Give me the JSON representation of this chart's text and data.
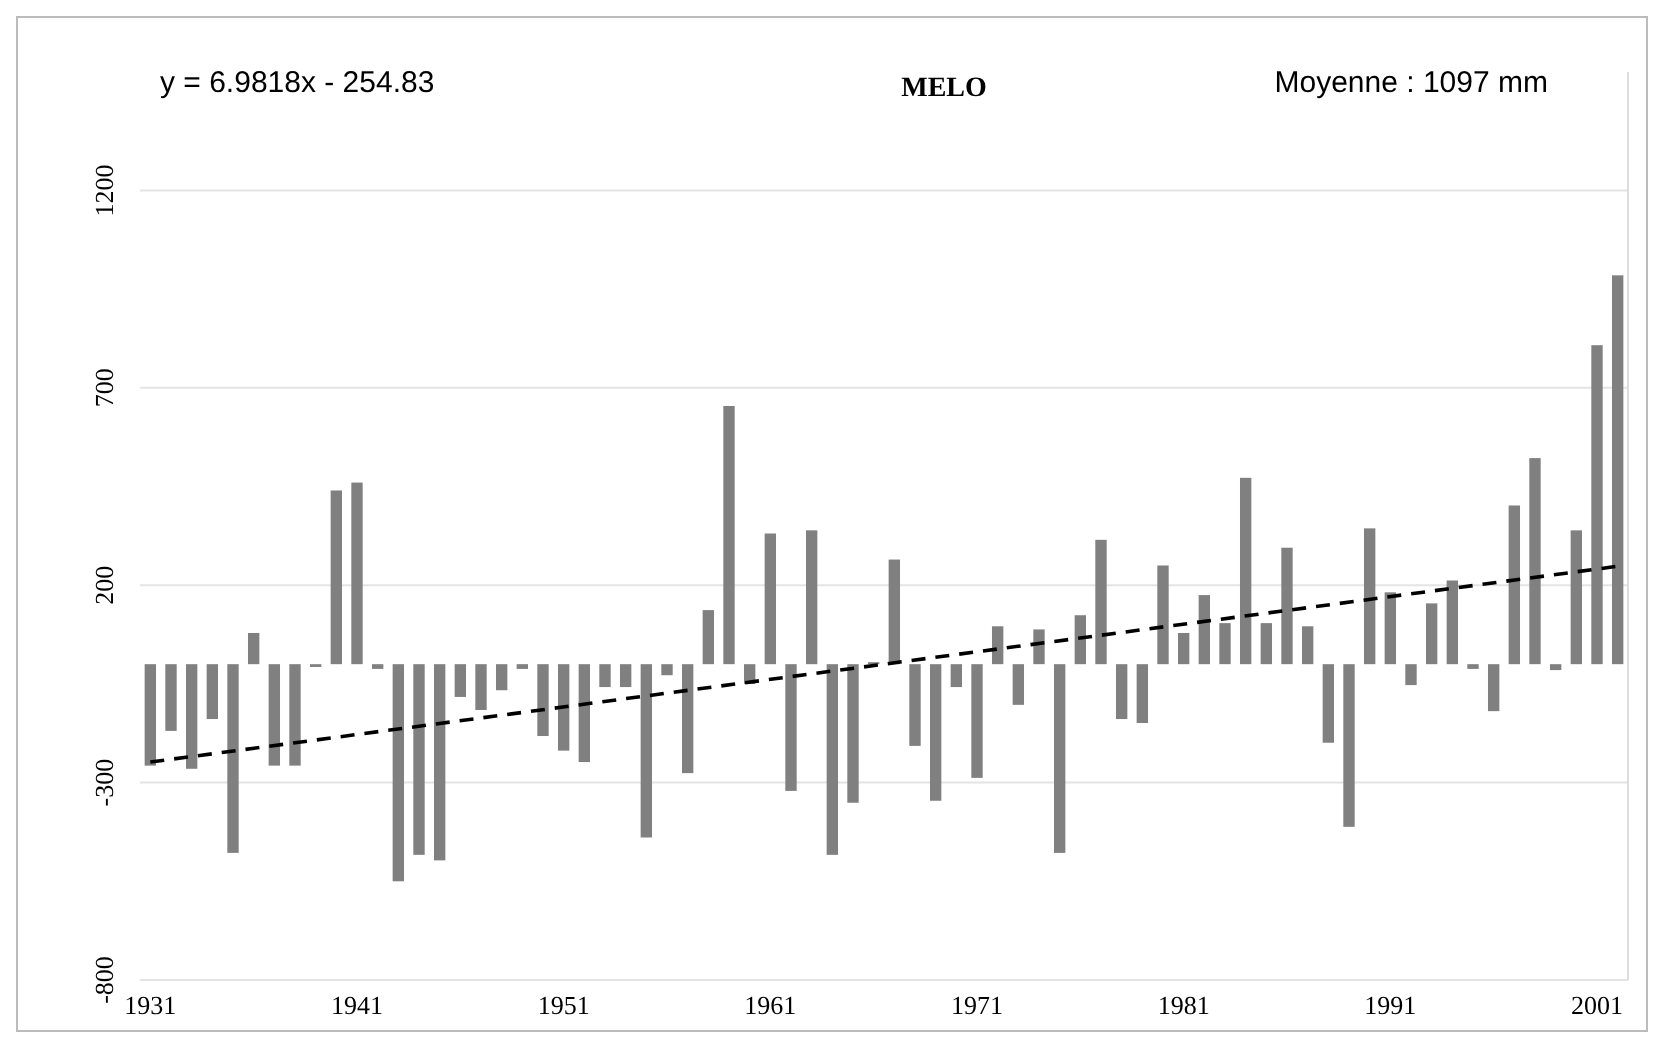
{
  "chart_data": {
    "type": "bar",
    "title": "MELO",
    "annotations": [
      "y = 6.9818x - 254.83",
      "Moyenne : 1097 mm"
    ],
    "x": [
      1931,
      1932,
      1933,
      1934,
      1935,
      1936,
      1937,
      1938,
      1939,
      1940,
      1941,
      1942,
      1943,
      1944,
      1945,
      1946,
      1947,
      1948,
      1949,
      1950,
      1951,
      1952,
      1953,
      1954,
      1955,
      1956,
      1957,
      1958,
      1959,
      1960,
      1961,
      1962,
      1963,
      1964,
      1965,
      1966,
      1967,
      1968,
      1969,
      1970,
      1971,
      1972,
      1973,
      1974,
      1975,
      1976,
      1977,
      1978,
      1979,
      1980,
      1981,
      1982,
      1983,
      1984,
      1985,
      1986,
      1987,
      1988,
      1989,
      1990,
      1991,
      1992,
      1993,
      1994,
      1995,
      1996,
      1997,
      1998,
      1999,
      2000,
      2001,
      2002
    ],
    "series": [
      {
        "color": "#808080",
        "values": [
          -257,
          -169,
          -265,
          -139,
          -478,
          79,
          -257,
          -257,
          -7,
          440,
          460,
          -12,
          -550,
          -483,
          -497,
          -83,
          -116,
          -66,
          -12,
          -182,
          -219,
          -248,
          -58,
          -58,
          -439,
          -28,
          -276,
          137,
          654,
          -50,
          331,
          -321,
          339,
          -483,
          -351,
          5,
          265,
          -207,
          -346,
          -58,
          -288,
          96,
          -103,
          88,
          -478,
          124,
          315,
          -139,
          -149,
          250,
          79,
          175,
          104,
          472,
          104,
          295,
          96,
          -199,
          -412,
          344,
          182,
          -53,
          154,
          212,
          -12,
          -119,
          402,
          522,
          -15,
          339,
          808,
          985
        ]
      },
      {
        "type": "line",
        "color": "#000000",
        "line_style": "dashed",
        "marker": "none",
        "x": [
          1931,
          2002
        ],
        "values": [
          -248,
          248
        ]
      }
    ],
    "xlim": [
      1930.5,
      2002.5
    ],
    "xticks": [
      1931,
      1941,
      1951,
      1961,
      1971,
      1981,
      1991,
      2001
    ],
    "ylim": [
      -800,
      1500
    ],
    "yticks": [
      -800,
      -300,
      200,
      700,
      1200
    ],
    "grid": "y"
  }
}
